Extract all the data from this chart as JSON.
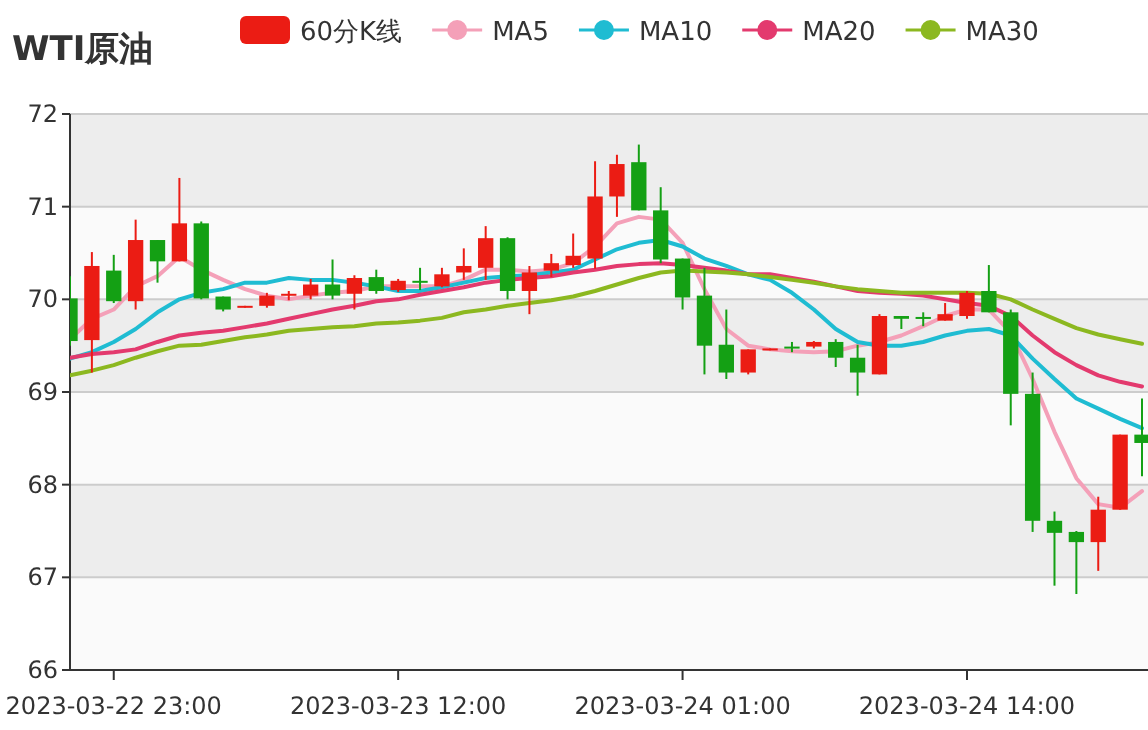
{
  "chart_data": {
    "type": "candlestick",
    "title": "WTI原油",
    "categories": [
      null,
      null,
      "2023-03-22 23:00",
      null,
      null,
      null,
      null,
      null,
      null,
      null,
      null,
      null,
      null,
      null,
      null,
      "2023-03-23 12:00",
      null,
      null,
      null,
      null,
      null,
      null,
      null,
      null,
      null,
      null,
      null,
      null,
      "2023-03-24 01:00",
      null,
      null,
      null,
      null,
      null,
      null,
      null,
      null,
      null,
      null,
      null,
      null,
      "2023-03-24 14:00",
      null,
      null,
      null,
      null,
      null,
      null,
      null,
      null
    ],
    "ylim": [
      66,
      72
    ],
    "yticks": [
      66,
      67,
      68,
      69,
      70,
      71,
      72
    ],
    "grid": true,
    "legend": "top",
    "marker": "none",
    "line_style": "solid",
    "series": [
      {
        "type": "candlestick",
        "name": "60分K线",
        "color": "#eb1c14",
        "colors": [
          "#14a014",
          "#eb1c14",
          "#14a014",
          "#eb1c14",
          "#14a014",
          "#eb1c14",
          "#14a014",
          "#14a014",
          "#eb1c14",
          "#eb1c14",
          "#eb1c14",
          "#eb1c14",
          "#14a014",
          "#eb1c14",
          "#14a014",
          "#eb1c14",
          "#14a014",
          "#eb1c14",
          "#eb1c14",
          "#eb1c14",
          "#14a014",
          "#eb1c14",
          "#eb1c14",
          "#eb1c14",
          "#eb1c14",
          "#eb1c14",
          "#14a014",
          "#14a014",
          "#14a014",
          "#14a014",
          "#14a014",
          "#eb1c14",
          "#eb1c14",
          "#14a014",
          "#eb1c14",
          "#14a014",
          "#14a014",
          "#eb1c14",
          "#14a014",
          "#14a014",
          "#eb1c14",
          "#eb1c14",
          "#14a014",
          "#14a014",
          "#14a014",
          "#14a014",
          "#14a014",
          "#eb1c14",
          "#eb1c14",
          "#14a014"
        ],
        "ohlc": [
          [
            70.01,
            70.25,
            69.5,
            69.55
          ],
          [
            69.56,
            70.51,
            69.21,
            70.36
          ],
          [
            70.31,
            70.48,
            69.96,
            69.98
          ],
          [
            69.98,
            70.86,
            69.89,
            70.64
          ],
          [
            70.64,
            70.64,
            70.18,
            70.41
          ],
          [
            70.41,
            71.31,
            70.41,
            70.82
          ],
          [
            70.82,
            70.84,
            70.0,
            70.01
          ],
          [
            70.03,
            70.03,
            69.87,
            69.89
          ],
          [
            69.91,
            69.93,
            69.91,
            69.93
          ],
          [
            69.93,
            70.07,
            69.91,
            70.04
          ],
          [
            70.04,
            70.09,
            69.99,
            70.06
          ],
          [
            70.04,
            70.22,
            70.0,
            70.16
          ],
          [
            70.16,
            70.43,
            70.0,
            70.04
          ],
          [
            70.06,
            70.26,
            69.89,
            70.23
          ],
          [
            70.24,
            70.32,
            70.06,
            70.09
          ],
          [
            70.1,
            70.22,
            70.08,
            70.2
          ],
          [
            70.2,
            70.34,
            70.1,
            70.18
          ],
          [
            70.14,
            70.34,
            70.13,
            70.27
          ],
          [
            70.29,
            70.55,
            70.21,
            70.36
          ],
          [
            70.34,
            70.79,
            70.21,
            70.66
          ],
          [
            70.66,
            70.67,
            70.0,
            70.09
          ],
          [
            70.09,
            70.36,
            69.84,
            70.29
          ],
          [
            70.31,
            70.49,
            70.24,
            70.39
          ],
          [
            70.37,
            70.71,
            70.34,
            70.47
          ],
          [
            70.44,
            71.49,
            70.33,
            71.11
          ],
          [
            71.11,
            71.56,
            70.89,
            71.46
          ],
          [
            71.48,
            71.67,
            70.96,
            70.96
          ],
          [
            70.96,
            71.21,
            70.39,
            70.43
          ],
          [
            70.44,
            70.44,
            69.89,
            70.02
          ],
          [
            70.04,
            70.34,
            69.19,
            69.5
          ],
          [
            69.51,
            69.89,
            69.14,
            69.21
          ],
          [
            69.21,
            69.46,
            69.19,
            69.46
          ],
          [
            69.46,
            69.47,
            69.45,
            69.47
          ],
          [
            69.49,
            69.54,
            69.43,
            69.48
          ],
          [
            69.49,
            69.55,
            69.47,
            69.54
          ],
          [
            69.54,
            69.57,
            69.27,
            69.37
          ],
          [
            69.37,
            69.51,
            68.96,
            69.21
          ],
          [
            69.19,
            69.84,
            69.19,
            69.82
          ],
          [
            69.82,
            69.82,
            69.68,
            69.79
          ],
          [
            69.81,
            69.86,
            69.71,
            69.8
          ],
          [
            69.77,
            69.96,
            69.77,
            69.84
          ],
          [
            69.82,
            70.09,
            69.79,
            70.07
          ],
          [
            70.09,
            70.37,
            69.86,
            69.86
          ],
          [
            69.86,
            69.89,
            68.64,
            68.98
          ],
          [
            68.98,
            69.21,
            67.49,
            67.61
          ],
          [
            67.61,
            67.71,
            66.91,
            67.48
          ],
          [
            67.49,
            67.5,
            66.82,
            67.38
          ],
          [
            67.38,
            67.87,
            67.07,
            67.73
          ],
          [
            67.73,
            68.54,
            67.73,
            68.54
          ],
          [
            68.54,
            68.93,
            68.09,
            68.45
          ]
        ]
      },
      {
        "type": "line",
        "name": "MA5",
        "color": "#f4a0b8",
        "values": [
          69.57,
          69.79,
          69.89,
          70.14,
          70.25,
          70.46,
          70.32,
          70.21,
          70.11,
          70.04,
          70.0,
          70.04,
          70.07,
          70.09,
          70.14,
          70.14,
          70.14,
          70.14,
          70.21,
          70.32,
          70.32,
          70.3,
          70.32,
          70.39,
          70.57,
          70.82,
          70.89,
          70.86,
          70.61,
          70.11,
          69.68,
          69.5,
          69.46,
          69.44,
          69.43,
          69.44,
          69.5,
          69.54,
          69.61,
          69.71,
          69.82,
          69.89,
          69.89,
          69.64,
          69.14,
          68.57,
          68.07,
          67.79,
          67.75,
          67.93
        ]
      },
      {
        "type": "line",
        "name": "MA10",
        "color": "#1fbcd2",
        "values": [
          69.36,
          69.43,
          69.54,
          69.68,
          69.86,
          70.0,
          70.07,
          70.11,
          70.18,
          70.18,
          70.23,
          70.21,
          70.21,
          70.18,
          70.14,
          70.09,
          70.09,
          70.13,
          70.18,
          70.23,
          70.25,
          70.26,
          70.29,
          70.32,
          70.43,
          70.54,
          70.61,
          70.64,
          70.57,
          70.44,
          70.36,
          70.27,
          70.21,
          70.07,
          69.89,
          69.68,
          69.54,
          69.5,
          69.5,
          69.54,
          69.61,
          69.66,
          69.68,
          69.61,
          69.36,
          69.14,
          68.93,
          68.82,
          68.71,
          68.61
        ]
      },
      {
        "type": "line",
        "name": "MA20",
        "color": "#e33a6e",
        "values": [
          69.37,
          69.41,
          69.43,
          69.46,
          69.54,
          69.61,
          69.64,
          69.66,
          69.7,
          69.74,
          69.79,
          69.84,
          69.89,
          69.93,
          69.98,
          70.0,
          70.05,
          70.09,
          70.13,
          70.18,
          70.21,
          70.23,
          70.25,
          70.29,
          70.32,
          70.36,
          70.38,
          70.39,
          70.37,
          70.34,
          70.31,
          70.27,
          70.27,
          70.23,
          70.19,
          70.14,
          70.09,
          70.07,
          70.06,
          70.04,
          70.0,
          69.96,
          69.93,
          69.82,
          69.61,
          69.43,
          69.29,
          69.18,
          69.11,
          69.06
        ]
      },
      {
        "type": "line",
        "name": "MA30",
        "color": "#8cb820",
        "values": [
          69.18,
          69.23,
          69.29,
          69.37,
          69.44,
          69.5,
          69.51,
          69.55,
          69.59,
          69.62,
          69.66,
          69.68,
          69.7,
          69.71,
          69.74,
          69.75,
          69.77,
          69.8,
          69.86,
          69.89,
          69.93,
          69.96,
          69.99,
          70.03,
          70.09,
          70.16,
          70.23,
          70.29,
          70.31,
          70.3,
          70.29,
          70.27,
          70.24,
          70.21,
          70.18,
          70.14,
          70.11,
          70.09,
          70.07,
          70.07,
          70.07,
          70.07,
          70.06,
          70.0,
          69.89,
          69.79,
          69.69,
          69.62,
          69.57,
          69.52
        ]
      }
    ]
  }
}
